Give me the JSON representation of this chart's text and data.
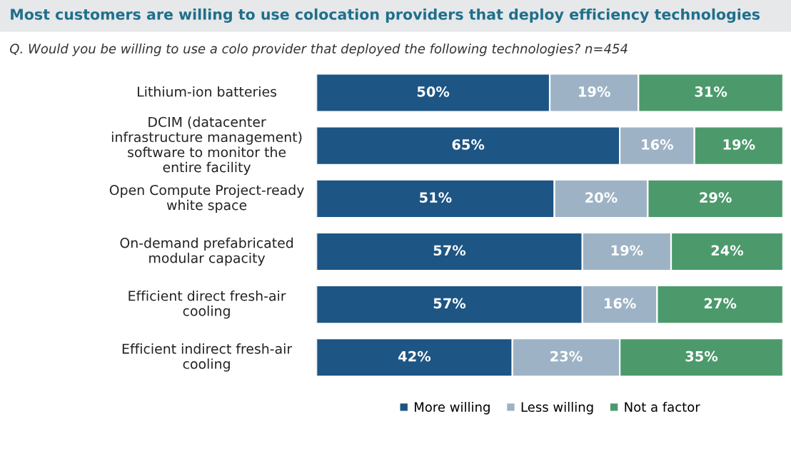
{
  "chart_data": {
    "type": "bar",
    "orientation": "horizontal",
    "stacked": true,
    "title": "Most customers are willing to use colocation providers that deploy efficiency technologies",
    "subtitle": "Q. Would you be willing to use a colo provider that deployed the following technologies? n=454",
    "categories": [
      "Lithium-ion batteries",
      "DCIM (datacenter infrastructure management) software to monitor the entire facility",
      "Open Compute Project-ready white space",
      "On-demand prefabricated modular capacity",
      "Efficient direct fresh-air cooling",
      "Efficient indirect fresh-air cooling"
    ],
    "series": [
      {
        "name": "More willing",
        "color": "#1d5584",
        "values": [
          50,
          65,
          51,
          57,
          57,
          42
        ],
        "value_labels": [
          "50%",
          "65%",
          "51%",
          "57%",
          "57%",
          "42%"
        ]
      },
      {
        "name": "Less willing",
        "color": "#9db3c5",
        "values": [
          19,
          16,
          20,
          19,
          16,
          23
        ],
        "value_labels": [
          "19%",
          "16%",
          "20%",
          "19%",
          "16%",
          "23%"
        ]
      },
      {
        "name": "Not a factor",
        "color": "#4c9a6c",
        "values": [
          31,
          19,
          29,
          24,
          27,
          35
        ],
        "value_labels": [
          "31%",
          "19%",
          "29%",
          "24%",
          "27%",
          "35%"
        ]
      }
    ],
    "xlim": [
      0,
      100
    ],
    "tick_labels": "y",
    "legend": "bottom"
  }
}
